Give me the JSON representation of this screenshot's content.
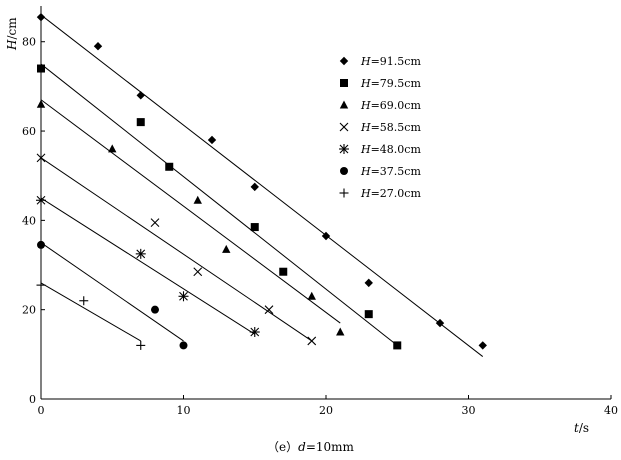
{
  "chart_data": {
    "type": "scatter",
    "caption": {
      "prefix": "（e）",
      "var": "d",
      "rest": "=10mm"
    },
    "xlabel": {
      "var": "t",
      "unit": "/s"
    },
    "ylabel": {
      "var": "H",
      "unit": "/cm"
    },
    "xlim": [
      0,
      40
    ],
    "ylim": [
      0,
      88
    ],
    "xticks": [
      "0",
      "10",
      "20",
      "30",
      "40"
    ],
    "yticks": [
      "0",
      "20",
      "40",
      "60",
      "80"
    ],
    "grid": false,
    "legend_position": "top-right",
    "series": [
      {
        "name": "H=91.5cm",
        "var": "H",
        "label_rest": "=91.5cm",
        "marker": "diamond",
        "points": [
          [
            0,
            85.5
          ],
          [
            4,
            79
          ],
          [
            7,
            68
          ],
          [
            12,
            58
          ],
          [
            15,
            47.5
          ],
          [
            20,
            36.5
          ],
          [
            23,
            26
          ],
          [
            28,
            17
          ],
          [
            31,
            12
          ]
        ],
        "fit": [
          [
            0,
            86
          ],
          [
            31,
            9.5
          ]
        ]
      },
      {
        "name": "H=79.5cm",
        "var": "H",
        "label_rest": "=79.5cm",
        "marker": "square",
        "points": [
          [
            0,
            74
          ],
          [
            7,
            62
          ],
          [
            9,
            52
          ],
          [
            15,
            38.5
          ],
          [
            17,
            28.5
          ],
          [
            23,
            19
          ],
          [
            25,
            12
          ]
        ],
        "fit": [
          [
            0,
            75
          ],
          [
            25,
            12
          ]
        ]
      },
      {
        "name": "H=69.0cm",
        "var": "H",
        "label_rest": "=69.0cm",
        "marker": "triangle",
        "points": [
          [
            0,
            66
          ],
          [
            5,
            56
          ],
          [
            11,
            44.5
          ],
          [
            13,
            33.5
          ],
          [
            19,
            23
          ],
          [
            21,
            15
          ]
        ],
        "fit": [
          [
            0,
            67
          ],
          [
            21,
            17
          ]
        ]
      },
      {
        "name": "H=58.5cm",
        "var": "H",
        "label_rest": "=58.5cm",
        "marker": "x",
        "points": [
          [
            0,
            54
          ],
          [
            8,
            39.5
          ],
          [
            11,
            28.5
          ],
          [
            16,
            20
          ],
          [
            19,
            13
          ]
        ],
        "fit": [
          [
            0,
            54
          ],
          [
            19,
            13
          ]
        ]
      },
      {
        "name": "H=48.0cm",
        "var": "H",
        "label_rest": "=48.0cm",
        "marker": "asterisk",
        "points": [
          [
            0,
            44.5
          ],
          [
            7,
            32.5
          ],
          [
            10,
            23
          ],
          [
            15,
            15
          ]
        ],
        "fit": [
          [
            0,
            45
          ],
          [
            15,
            14.5
          ]
        ]
      },
      {
        "name": "H=37.5cm",
        "var": "H",
        "label_rest": "=37.5cm",
        "marker": "circle",
        "points": [
          [
            0,
            34.5
          ],
          [
            8,
            20
          ],
          [
            10,
            12
          ]
        ],
        "fit": [
          [
            0,
            35
          ],
          [
            10,
            13
          ]
        ]
      },
      {
        "name": "H=27.0cm",
        "var": "H",
        "label_rest": "=27.0cm",
        "marker": "plus",
        "points": [
          [
            0,
            25.5
          ],
          [
            3,
            22
          ],
          [
            7,
            12
          ]
        ],
        "fit": [
          [
            0,
            26
          ],
          [
            7,
            13
          ]
        ]
      }
    ]
  }
}
